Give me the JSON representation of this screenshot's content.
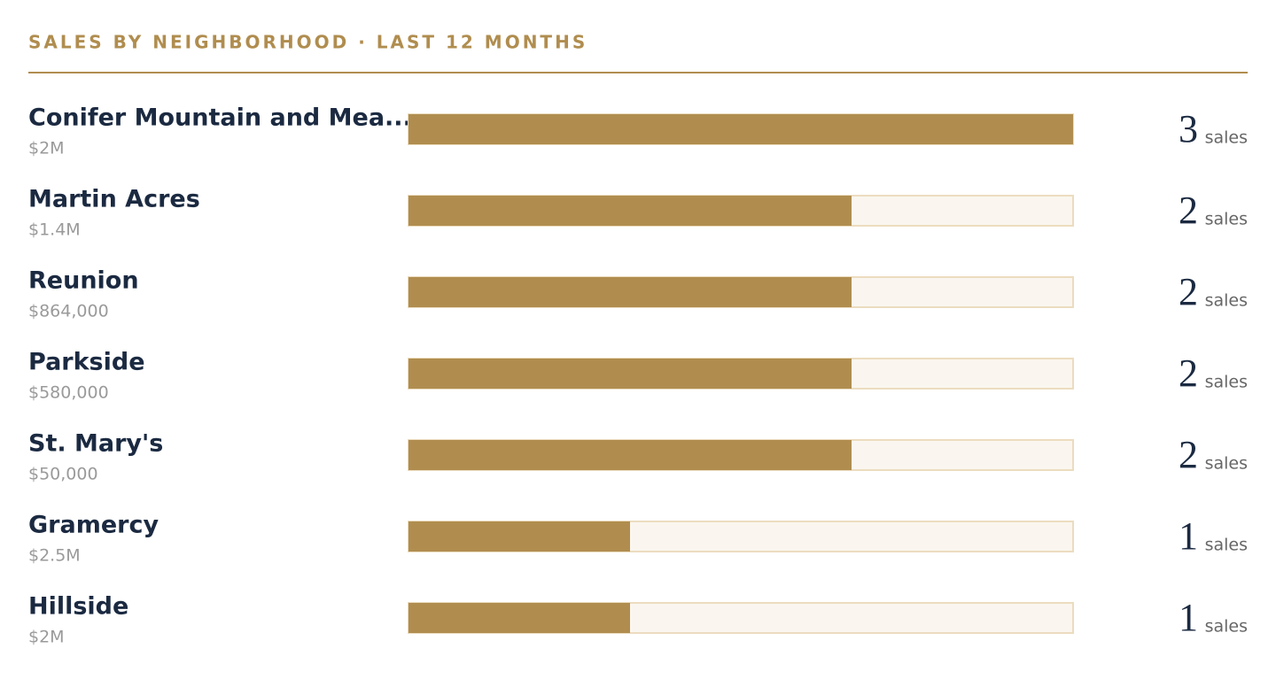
{
  "chart_data": {
    "type": "bar",
    "title": "SALES BY NEIGHBORHOOD · LAST 12 MONTHS",
    "categories": [
      "Conifer Mountain and Mea...",
      "Martin Acres",
      "Reunion",
      "Parkside",
      "St. Mary's",
      "Gramercy",
      "Hillside"
    ],
    "volumes": [
      "$2M",
      "$1.4M",
      "$864,000",
      "$580,000",
      "$50,000",
      "$2.5M",
      "$2M"
    ],
    "values": [
      3,
      2,
      2,
      2,
      2,
      1,
      1
    ],
    "unit_label": "sales",
    "color": "#b08d4f"
  }
}
